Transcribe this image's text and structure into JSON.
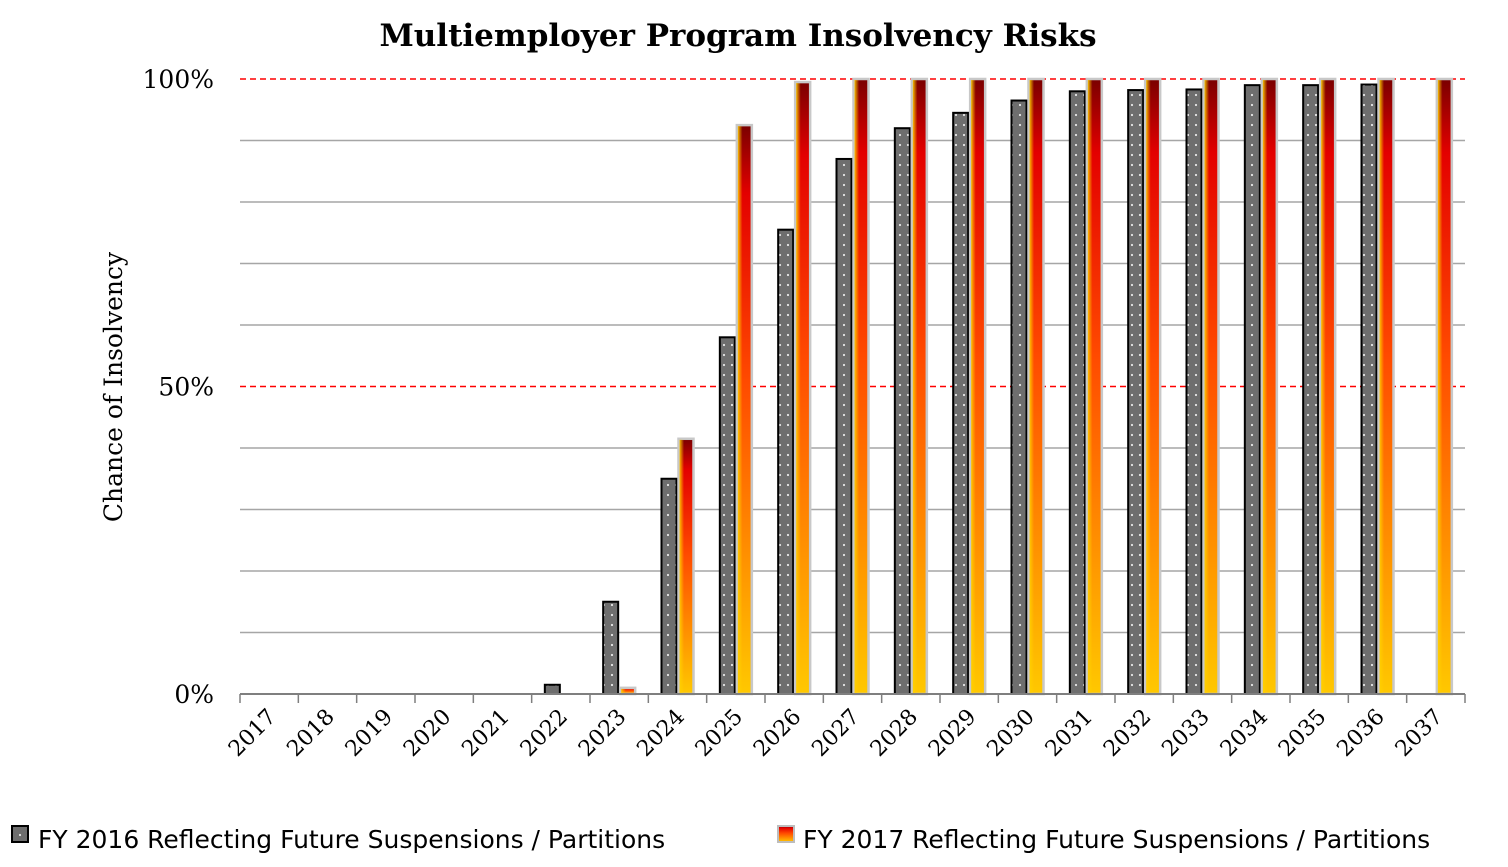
{
  "chart_data": {
    "type": "bar",
    "title": "Multiemployer Program Insolvency Risks",
    "ylabel": "Chance of Insolvency",
    "xlabel": "",
    "ylim": [
      0,
      100
    ],
    "yticks": [
      {
        "value": 0,
        "label": "0%"
      },
      {
        "value": 50,
        "label": "50%"
      },
      {
        "value": 100,
        "label": "100%"
      }
    ],
    "reference_lines": [
      50,
      100
    ],
    "reference_line_color": "#ff0000",
    "grid": true,
    "legend_position": "bottom",
    "categories": [
      "2017",
      "2018",
      "2019",
      "2020",
      "2021",
      "2022",
      "2023",
      "2024",
      "2025",
      "2026",
      "2027",
      "2028",
      "2029",
      "2030",
      "2031",
      "2032",
      "2033",
      "2034",
      "2035",
      "2036",
      "2037"
    ],
    "series": [
      {
        "name": "FY 2016 Reflecting Future Suspensions / Partitions",
        "color": "#707070",
        "values": [
          0,
          0,
          0,
          0,
          0,
          1.5,
          15,
          35,
          58,
          75.5,
          87,
          92,
          94.5,
          96.5,
          98,
          98.2,
          98.3,
          99,
          99,
          99.1,
          null
        ]
      },
      {
        "name": "FY 2017 Reflecting Future Suspensions / Partitions",
        "color": "#ff6a00",
        "values": [
          0,
          0,
          0,
          0,
          0,
          0,
          1,
          41.5,
          92.5,
          99.5,
          100,
          100,
          100,
          100,
          100,
          100,
          100,
          100,
          100,
          100,
          100
        ]
      }
    ]
  }
}
